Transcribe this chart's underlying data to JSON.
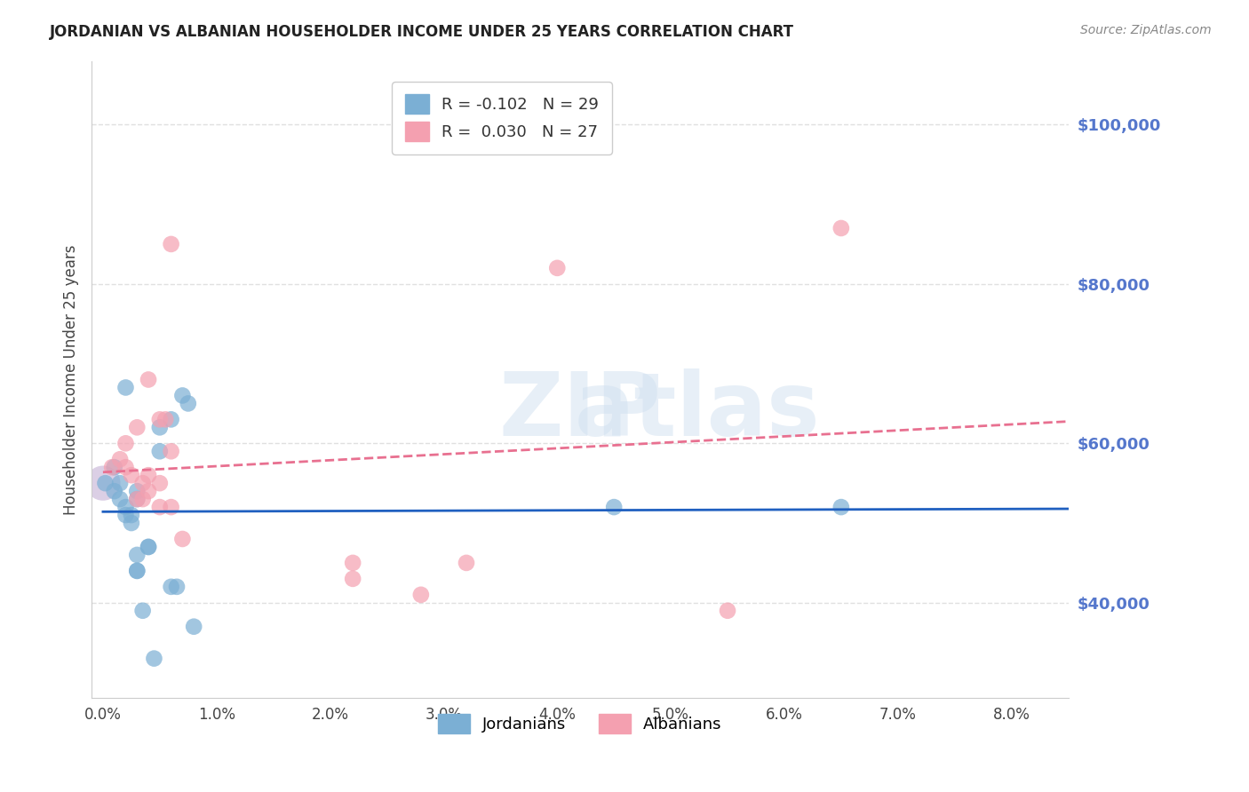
{
  "title": "JORDANIAN VS ALBANIAN HOUSEHOLDER INCOME UNDER 25 YEARS CORRELATION CHART",
  "source": "Source: ZipAtlas.com",
  "xlabel_ticks": [
    0.0,
    1.0,
    2.0,
    3.0,
    4.0,
    5.0,
    6.0,
    7.0,
    8.0
  ],
  "ylabel_ticks": [
    40000,
    60000,
    80000,
    100000
  ],
  "ylabel_labels": [
    "$40,000",
    "$60,000",
    "$80,000",
    "$100,000"
  ],
  "xlim": [
    -0.001,
    0.085
  ],
  "ylim": [
    28000,
    108000
  ],
  "ylabel": "Householder Income Under 25 years",
  "legend_entries": [
    {
      "label": "R = -0.102   N = 29",
      "color": "#7bafd4"
    },
    {
      "label": "R =  0.030   N = 27",
      "color": "#f4a0b0"
    }
  ],
  "jordanians_x": [
    0.0002,
    0.001,
    0.001,
    0.0015,
    0.0015,
    0.002,
    0.002,
    0.002,
    0.0025,
    0.0025,
    0.003,
    0.003,
    0.003,
    0.003,
    0.003,
    0.0035,
    0.004,
    0.004,
    0.0045,
    0.005,
    0.005,
    0.006,
    0.006,
    0.0065,
    0.007,
    0.0075,
    0.008,
    0.045,
    0.065
  ],
  "jordanians_y": [
    55000,
    57000,
    54000,
    55000,
    53000,
    51000,
    52000,
    67000,
    51000,
    50000,
    46000,
    44000,
    44000,
    53000,
    54000,
    39000,
    47000,
    47000,
    33000,
    59000,
    62000,
    63000,
    42000,
    42000,
    66000,
    65000,
    37000,
    52000,
    52000
  ],
  "albanians_x": [
    0.0008,
    0.0015,
    0.002,
    0.002,
    0.0025,
    0.003,
    0.003,
    0.0035,
    0.0035,
    0.004,
    0.004,
    0.004,
    0.005,
    0.005,
    0.005,
    0.0055,
    0.006,
    0.006,
    0.006,
    0.007,
    0.022,
    0.022,
    0.028,
    0.032,
    0.04,
    0.055,
    0.065
  ],
  "albanians_y": [
    57000,
    58000,
    57000,
    60000,
    56000,
    62000,
    53000,
    53000,
    55000,
    54000,
    56000,
    68000,
    55000,
    52000,
    63000,
    63000,
    59000,
    85000,
    52000,
    48000,
    43000,
    45000,
    41000,
    45000,
    82000,
    39000,
    87000
  ],
  "blue_color": "#7bafd4",
  "pink_color": "#f4a0b0",
  "blue_line_color": "#2060c0",
  "pink_line_color": "#e87090",
  "bg_color": "#ffffff",
  "grid_color": "#e0e0e0",
  "axis_label_color": "#5577cc",
  "watermark": "ZIPatlas",
  "dot_size": 180,
  "R_jordan": -0.102,
  "N_jordan": 29,
  "R_albanian": 0.03,
  "N_albanian": 27
}
